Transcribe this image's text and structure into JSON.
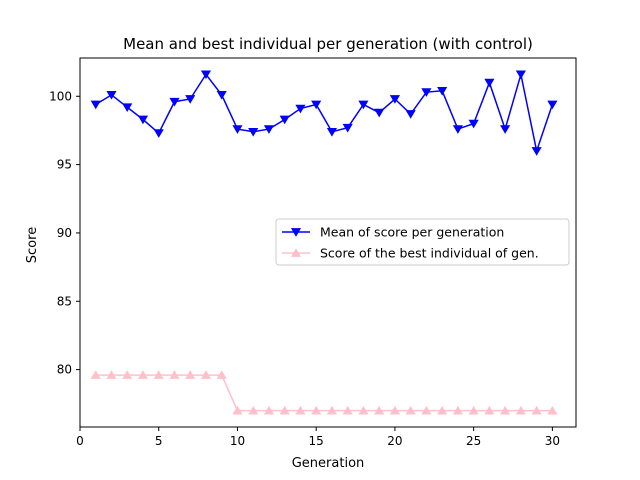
{
  "chart_data": {
    "type": "line",
    "title": "Mean and best individual per generation (with control)",
    "xlabel": "Generation",
    "ylabel": "Score",
    "xlim": [
      0,
      31.5
    ],
    "ylim": [
      75.8,
      102.8
    ],
    "xticks": [
      0,
      5,
      10,
      15,
      20,
      25,
      30
    ],
    "yticks": [
      80,
      85,
      90,
      95,
      100
    ],
    "grid": false,
    "legend_position": "center-right",
    "x": [
      1,
      2,
      3,
      4,
      5,
      6,
      7,
      8,
      9,
      10,
      11,
      12,
      13,
      14,
      15,
      16,
      17,
      18,
      19,
      20,
      21,
      22,
      23,
      24,
      25,
      26,
      27,
      28,
      29,
      30
    ],
    "series": [
      {
        "name": "Mean of score per generation",
        "color": "#0000ff",
        "marker": "triangle-down",
        "values": [
          99.4,
          100.1,
          99.2,
          98.3,
          97.3,
          99.6,
          99.8,
          101.6,
          100.1,
          97.6,
          97.4,
          97.6,
          98.3,
          99.1,
          99.4,
          97.4,
          97.7,
          99.4,
          98.8,
          99.8,
          98.7,
          100.3,
          100.4,
          97.6,
          98.0,
          101.0,
          97.6,
          101.6,
          96.0,
          99.4
        ]
      },
      {
        "name": "Score of the best individual of gen.",
        "color": "#ffc0cb",
        "marker": "triangle-up",
        "values": [
          79.6,
          79.6,
          79.6,
          79.6,
          79.6,
          79.6,
          79.6,
          79.6,
          79.6,
          77.0,
          77.0,
          77.0,
          77.0,
          77.0,
          77.0,
          77.0,
          77.0,
          77.0,
          77.0,
          77.0,
          77.0,
          77.0,
          77.0,
          77.0,
          77.0,
          77.0,
          77.0,
          77.0,
          77.0,
          77.0
        ]
      }
    ]
  }
}
